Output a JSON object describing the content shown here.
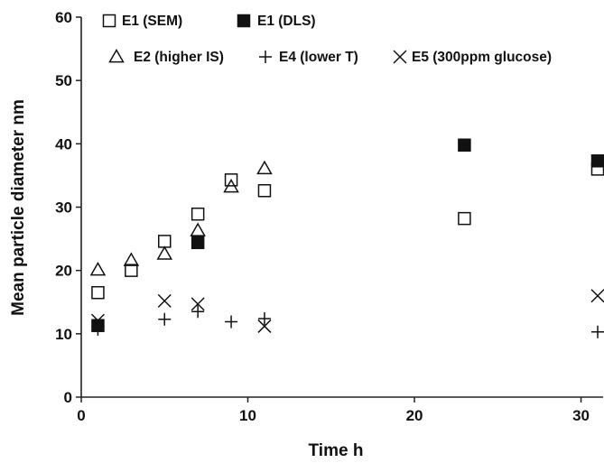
{
  "chart_data": {
    "type": "scatter",
    "xlabel": "Time h",
    "ylabel": "Mean particle diameter nm",
    "xlim": [
      0,
      31
    ],
    "ylim": [
      0,
      60
    ],
    "x_ticks": [
      0,
      10,
      20,
      30
    ],
    "y_ticks": [
      0,
      10,
      20,
      30,
      40,
      50,
      60
    ],
    "grid": false,
    "legend_position": "top-left",
    "series": [
      {
        "name": "E1 (SEM)",
        "marker": "square-open",
        "points": [
          [
            1,
            16.5
          ],
          [
            3,
            20
          ],
          [
            5,
            24.6
          ],
          [
            7,
            28.9
          ],
          [
            9,
            34.3
          ],
          [
            11,
            32.6
          ],
          [
            23,
            28.2
          ],
          [
            31,
            36
          ]
        ]
      },
      {
        "name": "E1 (DLS)",
        "marker": "square-filled",
        "points": [
          [
            1,
            11.3
          ],
          [
            7,
            24.4
          ],
          [
            23,
            39.8
          ],
          [
            31,
            37.3
          ]
        ]
      },
      {
        "name": "E2 (higher IS)",
        "marker": "triangle-open",
        "points": [
          [
            1,
            20.1
          ],
          [
            3,
            21.6
          ],
          [
            5,
            22.6
          ],
          [
            7,
            26.3
          ],
          [
            9,
            33.2
          ],
          [
            11,
            36.1
          ]
        ]
      },
      {
        "name": "E4 (lower T)",
        "marker": "plus",
        "points": [
          [
            1,
            10.7
          ],
          [
            5,
            12.3
          ],
          [
            7,
            13.5
          ],
          [
            9,
            11.9
          ],
          [
            11,
            12.4
          ],
          [
            31,
            10.3
          ]
        ]
      },
      {
        "name": "E5 (300ppm glucose)",
        "marker": "cross",
        "points": [
          [
            1,
            12.1
          ],
          [
            5,
            15.2
          ],
          [
            7,
            14.7
          ],
          [
            11,
            11.2
          ],
          [
            31,
            16
          ]
        ]
      }
    ]
  }
}
